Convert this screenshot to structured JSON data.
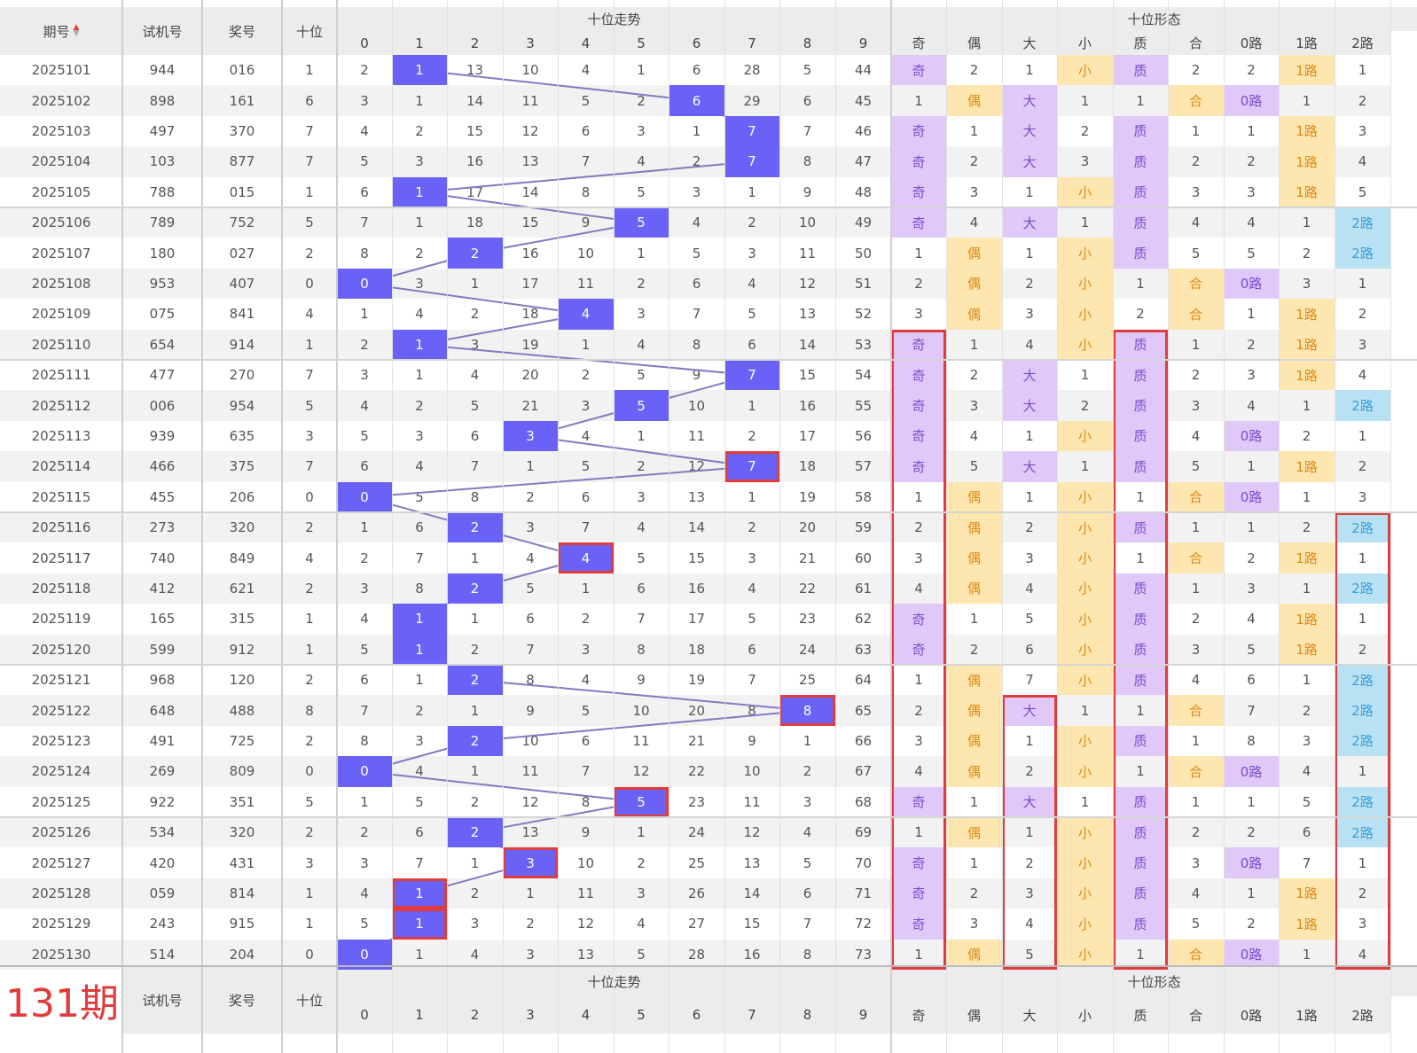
{
  "header": {
    "period": "期号",
    "sort_icon": "sort-arrows-icon",
    "trial": "试机号",
    "prize": "奖号",
    "ten": "十位",
    "trend_group": "十位走势",
    "form_group": "十位形态",
    "digits": [
      "0",
      "1",
      "2",
      "3",
      "4",
      "5",
      "6",
      "7",
      "8",
      "9"
    ],
    "forms": [
      "奇",
      "偶",
      "大",
      "小",
      "质",
      "合",
      "0路",
      "1路",
      "2路"
    ]
  },
  "footer": {
    "next_period": "131期",
    "trial": "试机号",
    "prize": "奖号",
    "ten": "十位",
    "trend_group": "十位走势",
    "form_group": "十位形态",
    "digits": [
      "0",
      "1",
      "2",
      "3",
      "4",
      "5",
      "6",
      "7",
      "8",
      "9"
    ],
    "forms": [
      "奇",
      "偶",
      "大",
      "小",
      "质",
      "合",
      "0路",
      "1路",
      "2路"
    ]
  },
  "colors": {
    "ball": "#6a62f6",
    "purple_bg": "#e0c8f9",
    "orange_bg": "#fde6b0",
    "blue_bg": "#b8e2f4",
    "highlight_border": "#e23b3b",
    "trend_line": "#7f7cc0"
  },
  "highlighted_balls": [
    13,
    16,
    21,
    24,
    26,
    27,
    28
  ],
  "highlighted_form_columns": [
    {
      "form": "奇",
      "from_row": 9,
      "to_row": 29
    },
    {
      "form": "质",
      "from_row": 9,
      "to_row": 29
    },
    {
      "form": "大",
      "from_row": 21,
      "to_row": 29
    },
    {
      "form": "2路",
      "from_row": 15,
      "to_row": 29
    }
  ],
  "rows": [
    {
      "period": "2025101",
      "trial": "944",
      "prize": "016",
      "ten": "1",
      "trend": [
        "2",
        "1",
        "13",
        "10",
        "4",
        "1",
        "6",
        "28",
        "5",
        "44"
      ],
      "forms": [
        "奇",
        "2",
        "1",
        "小",
        "质",
        "2",
        "2",
        "1路",
        "1"
      ]
    },
    {
      "period": "2025102",
      "trial": "898",
      "prize": "161",
      "ten": "6",
      "trend": [
        "3",
        "1",
        "14",
        "11",
        "5",
        "2",
        "6",
        "29",
        "6",
        "45"
      ],
      "forms": [
        "1",
        "偶",
        "大",
        "1",
        "1",
        "合",
        "0路",
        "1",
        "2"
      ]
    },
    {
      "period": "2025103",
      "trial": "497",
      "prize": "370",
      "ten": "7",
      "trend": [
        "4",
        "2",
        "15",
        "12",
        "6",
        "3",
        "1",
        "7",
        "7",
        "46"
      ],
      "forms": [
        "奇",
        "1",
        "大",
        "2",
        "质",
        "1",
        "1",
        "1路",
        "3"
      ]
    },
    {
      "period": "2025104",
      "trial": "103",
      "prize": "877",
      "ten": "7",
      "trend": [
        "5",
        "3",
        "16",
        "13",
        "7",
        "4",
        "2",
        "7",
        "8",
        "47"
      ],
      "forms": [
        "奇",
        "2",
        "大",
        "3",
        "质",
        "2",
        "2",
        "1路",
        "4"
      ]
    },
    {
      "period": "2025105",
      "trial": "788",
      "prize": "015",
      "ten": "1",
      "trend": [
        "6",
        "1",
        "17",
        "14",
        "8",
        "5",
        "3",
        "1",
        "9",
        "48"
      ],
      "forms": [
        "奇",
        "3",
        "1",
        "小",
        "质",
        "3",
        "3",
        "1路",
        "5"
      ]
    },
    {
      "period": "2025106",
      "trial": "789",
      "prize": "752",
      "ten": "5",
      "trend": [
        "7",
        "1",
        "18",
        "15",
        "9",
        "5",
        "4",
        "2",
        "10",
        "49"
      ],
      "forms": [
        "奇",
        "4",
        "大",
        "1",
        "质",
        "4",
        "4",
        "1",
        "2路"
      ]
    },
    {
      "period": "2025107",
      "trial": "180",
      "prize": "027",
      "ten": "2",
      "trend": [
        "8",
        "2",
        "2",
        "16",
        "10",
        "1",
        "5",
        "3",
        "11",
        "50"
      ],
      "forms": [
        "1",
        "偶",
        "1",
        "小",
        "质",
        "5",
        "5",
        "2",
        "2路"
      ]
    },
    {
      "period": "2025108",
      "trial": "953",
      "prize": "407",
      "ten": "0",
      "trend": [
        "0",
        "3",
        "1",
        "17",
        "11",
        "2",
        "6",
        "4",
        "12",
        "51"
      ],
      "forms": [
        "2",
        "偶",
        "2",
        "小",
        "1",
        "合",
        "0路",
        "3",
        "1"
      ]
    },
    {
      "period": "2025109",
      "trial": "075",
      "prize": "841",
      "ten": "4",
      "trend": [
        "1",
        "4",
        "2",
        "18",
        "4",
        "3",
        "7",
        "5",
        "13",
        "52"
      ],
      "forms": [
        "3",
        "偶",
        "3",
        "小",
        "2",
        "合",
        "1",
        "1路",
        "2"
      ]
    },
    {
      "period": "2025110",
      "trial": "654",
      "prize": "914",
      "ten": "1",
      "trend": [
        "2",
        "1",
        "3",
        "19",
        "1",
        "4",
        "8",
        "6",
        "14",
        "53"
      ],
      "forms": [
        "奇",
        "1",
        "4",
        "小",
        "质",
        "1",
        "2",
        "1路",
        "3"
      ]
    },
    {
      "period": "2025111",
      "trial": "477",
      "prize": "270",
      "ten": "7",
      "trend": [
        "3",
        "1",
        "4",
        "20",
        "2",
        "5",
        "9",
        "7",
        "15",
        "54"
      ],
      "forms": [
        "奇",
        "2",
        "大",
        "1",
        "质",
        "2",
        "3",
        "1路",
        "4"
      ]
    },
    {
      "period": "2025112",
      "trial": "006",
      "prize": "954",
      "ten": "5",
      "trend": [
        "4",
        "2",
        "5",
        "21",
        "3",
        "5",
        "10",
        "1",
        "16",
        "55"
      ],
      "forms": [
        "奇",
        "3",
        "大",
        "2",
        "质",
        "3",
        "4",
        "1",
        "2路"
      ]
    },
    {
      "period": "2025113",
      "trial": "939",
      "prize": "635",
      "ten": "3",
      "trend": [
        "5",
        "3",
        "6",
        "3",
        "4",
        "1",
        "11",
        "2",
        "17",
        "56"
      ],
      "forms": [
        "奇",
        "4",
        "1",
        "小",
        "质",
        "4",
        "0路",
        "2",
        "1"
      ]
    },
    {
      "period": "2025114",
      "trial": "466",
      "prize": "375",
      "ten": "7",
      "trend": [
        "6",
        "4",
        "7",
        "1",
        "5",
        "2",
        "12",
        "7",
        "18",
        "57"
      ],
      "forms": [
        "奇",
        "5",
        "大",
        "1",
        "质",
        "5",
        "1",
        "1路",
        "2"
      ]
    },
    {
      "period": "2025115",
      "trial": "455",
      "prize": "206",
      "ten": "0",
      "trend": [
        "0",
        "5",
        "8",
        "2",
        "6",
        "3",
        "13",
        "1",
        "19",
        "58"
      ],
      "forms": [
        "1",
        "偶",
        "1",
        "小",
        "1",
        "合",
        "0路",
        "1",
        "3"
      ]
    },
    {
      "period": "2025116",
      "trial": "273",
      "prize": "320",
      "ten": "2",
      "trend": [
        "1",
        "6",
        "2",
        "3",
        "7",
        "4",
        "14",
        "2",
        "20",
        "59"
      ],
      "forms": [
        "2",
        "偶",
        "2",
        "小",
        "质",
        "1",
        "1",
        "2",
        "2路"
      ]
    },
    {
      "period": "2025117",
      "trial": "740",
      "prize": "849",
      "ten": "4",
      "trend": [
        "2",
        "7",
        "1",
        "4",
        "4",
        "5",
        "15",
        "3",
        "21",
        "60"
      ],
      "forms": [
        "3",
        "偶",
        "3",
        "小",
        "1",
        "合",
        "2",
        "1路",
        "1"
      ]
    },
    {
      "period": "2025118",
      "trial": "412",
      "prize": "621",
      "ten": "2",
      "trend": [
        "3",
        "8",
        "2",
        "5",
        "1",
        "6",
        "16",
        "4",
        "22",
        "61"
      ],
      "forms": [
        "4",
        "偶",
        "4",
        "小",
        "质",
        "1",
        "3",
        "1",
        "2路"
      ]
    },
    {
      "period": "2025119",
      "trial": "165",
      "prize": "315",
      "ten": "1",
      "trend": [
        "4",
        "1",
        "1",
        "6",
        "2",
        "7",
        "17",
        "5",
        "23",
        "62"
      ],
      "forms": [
        "奇",
        "1",
        "5",
        "小",
        "质",
        "2",
        "4",
        "1路",
        "1"
      ]
    },
    {
      "period": "2025120",
      "trial": "599",
      "prize": "912",
      "ten": "1",
      "trend": [
        "5",
        "1",
        "2",
        "7",
        "3",
        "8",
        "18",
        "6",
        "24",
        "63"
      ],
      "forms": [
        "奇",
        "2",
        "6",
        "小",
        "质",
        "3",
        "5",
        "1路",
        "2"
      ]
    },
    {
      "period": "2025121",
      "trial": "968",
      "prize": "120",
      "ten": "2",
      "trend": [
        "6",
        "1",
        "2",
        "8",
        "4",
        "9",
        "19",
        "7",
        "25",
        "64"
      ],
      "forms": [
        "1",
        "偶",
        "7",
        "小",
        "质",
        "4",
        "6",
        "1",
        "2路"
      ]
    },
    {
      "period": "2025122",
      "trial": "648",
      "prize": "488",
      "ten": "8",
      "trend": [
        "7",
        "2",
        "1",
        "9",
        "5",
        "10",
        "20",
        "8",
        "8",
        "65"
      ],
      "forms": [
        "2",
        "偶",
        "大",
        "1",
        "1",
        "合",
        "7",
        "2",
        "2路"
      ]
    },
    {
      "period": "2025123",
      "trial": "491",
      "prize": "725",
      "ten": "2",
      "trend": [
        "8",
        "3",
        "2",
        "10",
        "6",
        "11",
        "21",
        "9",
        "1",
        "66"
      ],
      "forms": [
        "3",
        "偶",
        "1",
        "小",
        "质",
        "1",
        "8",
        "3",
        "2路"
      ]
    },
    {
      "period": "2025124",
      "trial": "269",
      "prize": "809",
      "ten": "0",
      "trend": [
        "0",
        "4",
        "1",
        "11",
        "7",
        "12",
        "22",
        "10",
        "2",
        "67"
      ],
      "forms": [
        "4",
        "偶",
        "2",
        "小",
        "1",
        "合",
        "0路",
        "4",
        "1"
      ]
    },
    {
      "period": "2025125",
      "trial": "922",
      "prize": "351",
      "ten": "5",
      "trend": [
        "1",
        "5",
        "2",
        "12",
        "8",
        "5",
        "23",
        "11",
        "3",
        "68"
      ],
      "forms": [
        "奇",
        "1",
        "大",
        "1",
        "质",
        "1",
        "1",
        "5",
        "2路"
      ]
    },
    {
      "period": "2025126",
      "trial": "534",
      "prize": "320",
      "ten": "2",
      "trend": [
        "2",
        "6",
        "2",
        "13",
        "9",
        "1",
        "24",
        "12",
        "4",
        "69"
      ],
      "forms": [
        "1",
        "偶",
        "1",
        "小",
        "质",
        "2",
        "2",
        "6",
        "2路"
      ]
    },
    {
      "period": "2025127",
      "trial": "420",
      "prize": "431",
      "ten": "3",
      "trend": [
        "3",
        "7",
        "1",
        "3",
        "10",
        "2",
        "25",
        "13",
        "5",
        "70"
      ],
      "forms": [
        "奇",
        "1",
        "2",
        "小",
        "质",
        "3",
        "0路",
        "7",
        "1"
      ]
    },
    {
      "period": "2025128",
      "trial": "059",
      "prize": "814",
      "ten": "1",
      "trend": [
        "4",
        "1",
        "2",
        "1",
        "11",
        "3",
        "26",
        "14",
        "6",
        "71"
      ],
      "forms": [
        "奇",
        "2",
        "3",
        "小",
        "质",
        "4",
        "1",
        "1路",
        "2"
      ]
    },
    {
      "period": "2025129",
      "trial": "243",
      "prize": "915",
      "ten": "1",
      "trend": [
        "5",
        "1",
        "3",
        "2",
        "12",
        "4",
        "27",
        "15",
        "7",
        "72"
      ],
      "forms": [
        "奇",
        "3",
        "4",
        "小",
        "质",
        "5",
        "2",
        "1路",
        "3"
      ]
    },
    {
      "period": "2025130",
      "trial": "514",
      "prize": "204",
      "ten": "0",
      "trend": [
        "0",
        "1",
        "4",
        "3",
        "13",
        "5",
        "28",
        "16",
        "8",
        "73"
      ],
      "forms": [
        "1",
        "偶",
        "5",
        "小",
        "1",
        "合",
        "0路",
        "1",
        "4"
      ]
    }
  ]
}
